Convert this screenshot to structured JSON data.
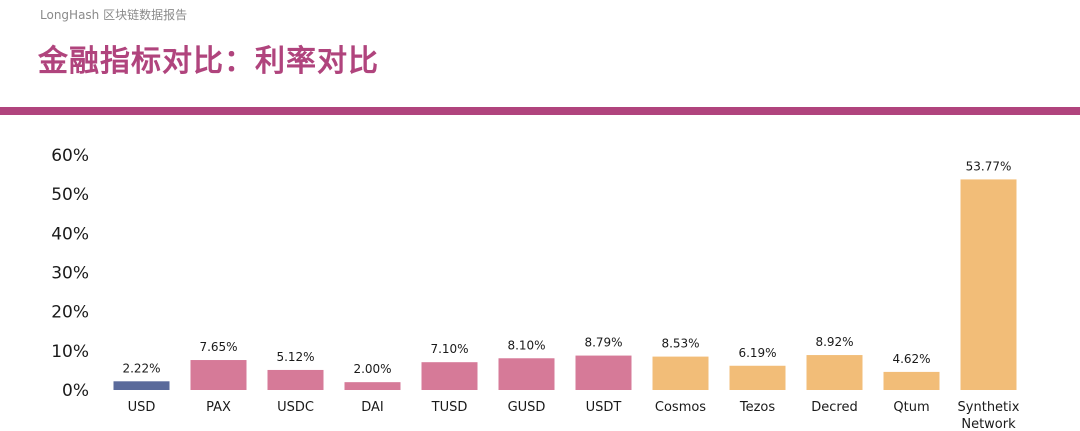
{
  "header": {
    "source": "LongHash 区块链数据报告",
    "title": "金融指标对比：利率对比"
  },
  "colors": {
    "accent": "#b0447d",
    "usd": "#5a6a9b",
    "stable": "#d67a98",
    "crypto": "#f2bd78"
  },
  "chart_data": {
    "type": "bar",
    "categories": [
      "USD",
      "PAX",
      "USDC",
      "DAI",
      "TUSD",
      "GUSD",
      "USDT",
      "Cosmos",
      "Tezos",
      "Decred",
      "Qtum",
      "Synthetix\nNetwork"
    ],
    "values": [
      2.22,
      7.65,
      5.12,
      2.0,
      7.1,
      8.1,
      8.79,
      8.53,
      6.19,
      8.92,
      4.62,
      53.77
    ],
    "value_labels": [
      "2.22%",
      "7.65%",
      "5.12%",
      "2.00%",
      "7.10%",
      "8.10%",
      "8.79%",
      "8.53%",
      "6.19%",
      "8.92%",
      "4.62%",
      "53.77%"
    ],
    "bar_colors": [
      "#5a6a9b",
      "#d67a98",
      "#d67a98",
      "#d67a98",
      "#d67a98",
      "#d67a98",
      "#d67a98",
      "#f2bd78",
      "#f2bd78",
      "#f2bd78",
      "#f2bd78",
      "#f2bd78"
    ],
    "ylim": [
      0,
      60
    ],
    "yticks": [
      "0%",
      "10%",
      "20%",
      "30%",
      "40%",
      "50%",
      "60%"
    ],
    "xlabel": "",
    "ylabel": "",
    "grid": false
  }
}
